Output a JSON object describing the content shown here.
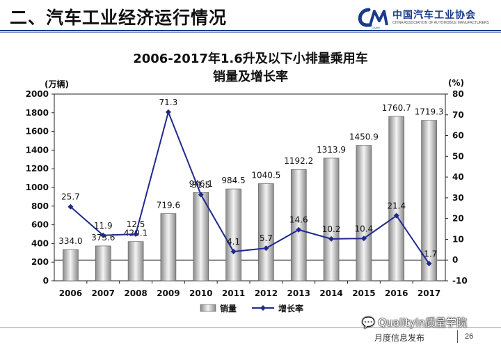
{
  "header": {
    "title": "二、汽车工业经济运行情况",
    "logo_mark": "CAAM",
    "org_name": "中国汽车工业协会",
    "org_subtitle": "CHINA ASSOCIATION OF AUTOMOBILE MANUFACTURERS"
  },
  "chart_data": {
    "type": "bar+line",
    "title_line1": "2006-2017年1.6升及以下小排量乘用车",
    "title_line2": "销量及增长率",
    "y_left_label": "(万辆)",
    "y_right_label": "(%)",
    "y_left_lim": [
      0,
      2000
    ],
    "y_left_ticks": [
      "0",
      "200",
      "400",
      "600",
      "800",
      "1000",
      "1200",
      "1400",
      "1600",
      "1800",
      "2000"
    ],
    "y_right_lim": [
      -10,
      80
    ],
    "y_right_ticks": [
      "-10",
      "0",
      "10",
      "20",
      "30",
      "40",
      "50",
      "60",
      "70",
      "80"
    ],
    "categories": [
      "2006",
      "2007",
      "2008",
      "2009",
      "2010",
      "2011",
      "2012",
      "2013",
      "2014",
      "2015",
      "2016",
      "2017"
    ],
    "series": [
      {
        "name": "销量",
        "kind": "bar",
        "values": [
          334.0,
          373.6,
          420.1,
          719.6,
          946.1,
          984.5,
          1040.5,
          1192.2,
          1313.9,
          1450.9,
          1760.7,
          1719.3
        ],
        "labels": [
          "334.0",
          "373.6",
          "420.1",
          "719.6",
          "946.1",
          "984.5",
          "1040.5",
          "1192.2",
          "1313.9",
          "1450.9",
          "1760.7",
          "1719.3"
        ]
      },
      {
        "name": "增长率",
        "kind": "line",
        "axis": "right",
        "values": [
          25.7,
          11.9,
          12.5,
          71.3,
          31.5,
          4.1,
          5.7,
          14.6,
          10.2,
          10.4,
          21.4,
          -1.7
        ],
        "labels": [
          "25.7",
          "11.9",
          "12.5",
          "71.3",
          "31.5",
          "4.1",
          "5.7",
          "14.6",
          "10.2",
          "10.4",
          "21.4",
          "-1.7"
        ]
      }
    ],
    "colors": {
      "bar_dark": "#8a8a8a",
      "bar_light": "#f4f4f4",
      "line": "#1f2a8c"
    },
    "legend": [
      "销量",
      "增长率"
    ],
    "legend_position": "bottom"
  },
  "watermark": "QualityIn质量学院",
  "footer": {
    "text": "月度信息发布",
    "page": "26"
  }
}
